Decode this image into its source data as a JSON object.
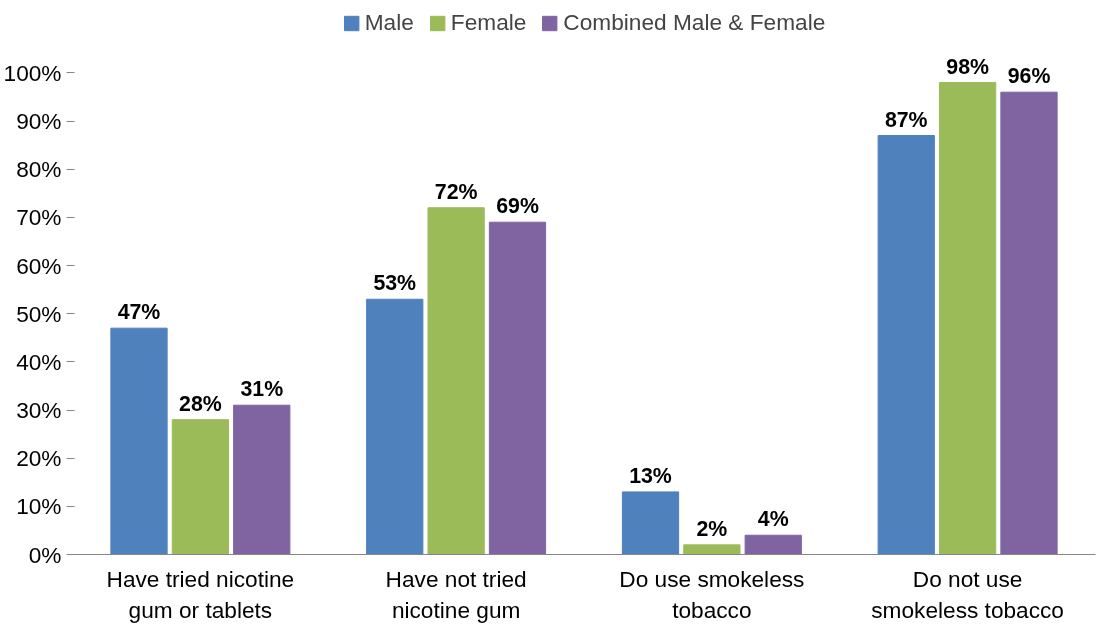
{
  "chart_data": {
    "type": "bar",
    "categories": [
      "Have tried nicotine gum or tablets",
      "Have not tried nicotine gum",
      "Do use smokeless tobacco",
      "Do not use smokeless tobacco"
    ],
    "series": [
      {
        "name": "Male",
        "color": "#4f81bd",
        "values": [
          47,
          53,
          13,
          87
        ],
        "value_labels": [
          "47%",
          "53%",
          "13%",
          "87%"
        ]
      },
      {
        "name": "Female",
        "color": "#9bbb59",
        "values": [
          28,
          72,
          2,
          98
        ],
        "value_labels": [
          "28%",
          "72%",
          "2%",
          "98%"
        ]
      },
      {
        "name": "Combined Male & Female",
        "color": "#8064a2",
        "values": [
          31,
          69,
          4,
          96
        ],
        "value_labels": [
          "31%",
          "69%",
          "4%",
          "96%"
        ]
      }
    ],
    "ylim": [
      0,
      100
    ],
    "yticks": [
      {
        "value": 0,
        "label": "0%"
      },
      {
        "value": 10,
        "label": "10%"
      },
      {
        "value": 20,
        "label": "20%"
      },
      {
        "value": 30,
        "label": "30%"
      },
      {
        "value": 40,
        "label": "40%"
      },
      {
        "value": 50,
        "label": "50%"
      },
      {
        "value": 60,
        "label": "60%"
      },
      {
        "value": 70,
        "label": "70%"
      },
      {
        "value": 80,
        "label": "80%"
      },
      {
        "value": 90,
        "label": "90%"
      },
      {
        "value": 100,
        "label": "100%"
      }
    ],
    "grid": false,
    "legend": "top"
  }
}
